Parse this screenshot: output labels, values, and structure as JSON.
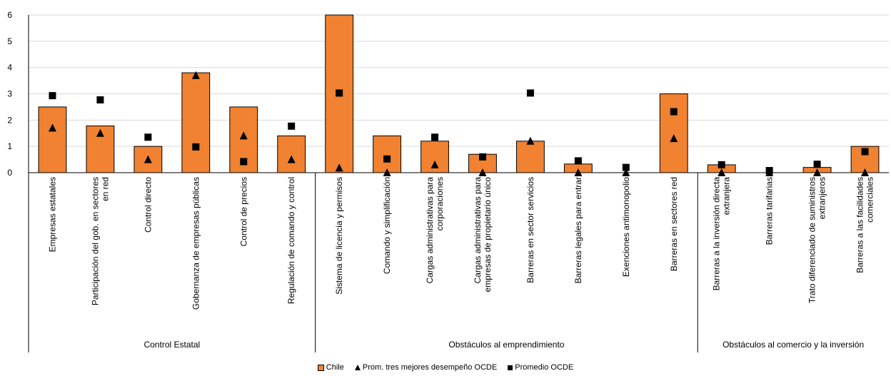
{
  "chart_data": {
    "type": "bar",
    "ylim": [
      0,
      6
    ],
    "yticks": [
      0,
      1,
      2,
      3,
      4,
      5,
      6
    ],
    "grid": true,
    "legend_position": "bottom",
    "categories": [
      [
        "Empresas estatales"
      ],
      [
        "Participación del gob. en sectores",
        "en red"
      ],
      [
        "Control directo"
      ],
      [
        "Gobernanza de empresas públicas"
      ],
      [
        "Control de precios"
      ],
      [
        "Regulación de comando y control"
      ],
      [
        "Sistema de licencia y permisos"
      ],
      [
        "Comando y simplificación"
      ],
      [
        "Cargas administrativas para",
        "corporaciones"
      ],
      [
        "Cargas administrativas para",
        "empresas de propietario único"
      ],
      [
        "Barreras en sector servicios"
      ],
      [
        "Barreras legales para entrar"
      ],
      [
        "Exenciones antimonopolio"
      ],
      [
        "Barreras en sectores red"
      ],
      [
        "Barreras a la inversión directa",
        "extranjera"
      ],
      [
        "Barreras tarifarias"
      ],
      [
        "Trato diferenciado de suministros",
        "extranjeros"
      ],
      [
        "Barreras a las facilidades",
        "comerciales"
      ]
    ],
    "groups": [
      {
        "label": "Control Estatal",
        "start": 0,
        "end": 5
      },
      {
        "label": "Obstáculos al emprendimiento",
        "start": 6,
        "end": 13
      },
      {
        "label": "Obstáculos al comercio y la inversión",
        "start": 14,
        "end": 17
      }
    ],
    "series": [
      {
        "name": "Chile",
        "kind": "bar",
        "color": "#f08232",
        "values": [
          2.5,
          1.78,
          1.0,
          3.8,
          2.5,
          1.4,
          6.0,
          1.4,
          1.2,
          0.7,
          1.2,
          0.33,
          0.0,
          3.0,
          0.3,
          0.0,
          0.2,
          1.0
        ]
      },
      {
        "name": "Prom. tres mejores desempeño OCDE",
        "kind": "triangle",
        "color": "#000000",
        "values": [
          1.7,
          1.5,
          0.5,
          3.7,
          1.4,
          0.5,
          0.18,
          0.0,
          0.3,
          0.0,
          1.2,
          0.0,
          0.0,
          1.3,
          0.0,
          0.0,
          0.0,
          0.0
        ]
      },
      {
        "name": "Promedio OCDE",
        "kind": "square",
        "color": "#000000",
        "values": [
          2.93,
          2.77,
          1.35,
          0.98,
          0.42,
          1.77,
          3.03,
          0.52,
          1.35,
          0.6,
          3.03,
          0.45,
          0.2,
          2.32,
          0.3,
          0.08,
          0.32,
          0.8
        ]
      }
    ]
  }
}
